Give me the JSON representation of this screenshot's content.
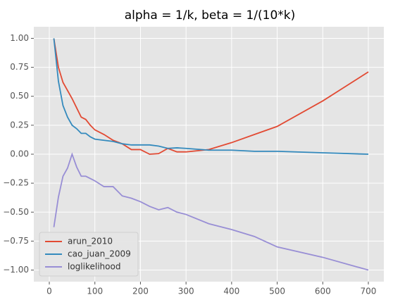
{
  "chart_data": {
    "type": "line",
    "title": "alpha = 1/k, beta = 1/(10*k)",
    "x": [
      10,
      20,
      30,
      40,
      50,
      60,
      70,
      80,
      90,
      100,
      120,
      140,
      160,
      180,
      200,
      220,
      240,
      260,
      280,
      300,
      350,
      400,
      450,
      500,
      600,
      700
    ],
    "series": [
      {
        "name": "arun_2010",
        "color": "#E24A33",
        "values": [
          1.0,
          0.75,
          0.62,
          0.55,
          0.48,
          0.4,
          0.32,
          0.3,
          0.25,
          0.21,
          0.17,
          0.12,
          0.09,
          0.04,
          0.04,
          0.0,
          0.005,
          0.05,
          0.02,
          0.02,
          0.04,
          0.1,
          0.17,
          0.24,
          0.46,
          0.71
        ]
      },
      {
        "name": "cao_juan_2009",
        "color": "#348ABD",
        "values": [
          1.0,
          0.63,
          0.42,
          0.32,
          0.25,
          0.22,
          0.18,
          0.18,
          0.15,
          0.13,
          0.12,
          0.11,
          0.09,
          0.08,
          0.08,
          0.08,
          0.07,
          0.05,
          0.055,
          0.05,
          0.035,
          0.035,
          0.025,
          0.025,
          0.012,
          0.0
        ]
      },
      {
        "name": "loglikelihood",
        "color": "#988ED5",
        "values": [
          -0.63,
          -0.37,
          -0.19,
          -0.12,
          0.0,
          -0.11,
          -0.19,
          -0.19,
          -0.21,
          -0.23,
          -0.28,
          -0.28,
          -0.36,
          -0.38,
          -0.41,
          -0.45,
          -0.48,
          -0.46,
          -0.5,
          -0.52,
          -0.6,
          -0.65,
          -0.71,
          -0.8,
          -0.89,
          -1.0
        ]
      }
    ],
    "xlim": [
      -34,
      734
    ],
    "ylim": [
      -1.1,
      1.1
    ],
    "xticks": [
      0,
      100,
      200,
      300,
      400,
      500,
      600,
      700
    ],
    "yticks": [
      {
        "value": 1,
        "label": "1.00"
      },
      {
        "value": 0.75,
        "label": "0.75"
      },
      {
        "value": 0.5,
        "label": "0.50"
      },
      {
        "value": 0.25,
        "label": "0.25"
      },
      {
        "value": 0,
        "label": "0.00"
      },
      {
        "value": -0.25,
        "label": "−0.25"
      },
      {
        "value": -0.5,
        "label": "−0.50"
      },
      {
        "value": -0.75,
        "label": "−0.75"
      },
      {
        "value": -1,
        "label": "−1.00"
      }
    ],
    "grid": true,
    "legend": "lower-left"
  }
}
